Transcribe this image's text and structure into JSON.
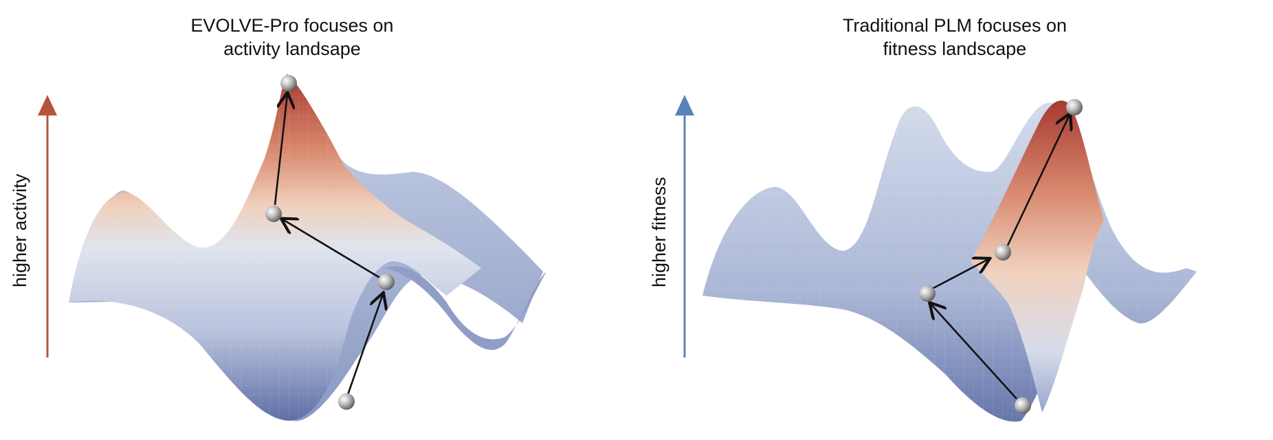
{
  "panels": [
    {
      "id": "left",
      "title_line1": "EVOLVE-Pro focuses on",
      "title_line2": "activity landsape",
      "axis_label": "higher activity",
      "arrow_color": "#b6533d"
    },
    {
      "id": "right",
      "title_line1": "Traditional PLM focuses on",
      "title_line2": "fitness landscape",
      "axis_label": "higher fitness",
      "arrow_color": "#5b82b8"
    }
  ],
  "colors": {
    "low": "#6f7fb3",
    "mid": "#dde3ee",
    "peach": "#f1cdb4",
    "high": "#a73a32"
  }
}
